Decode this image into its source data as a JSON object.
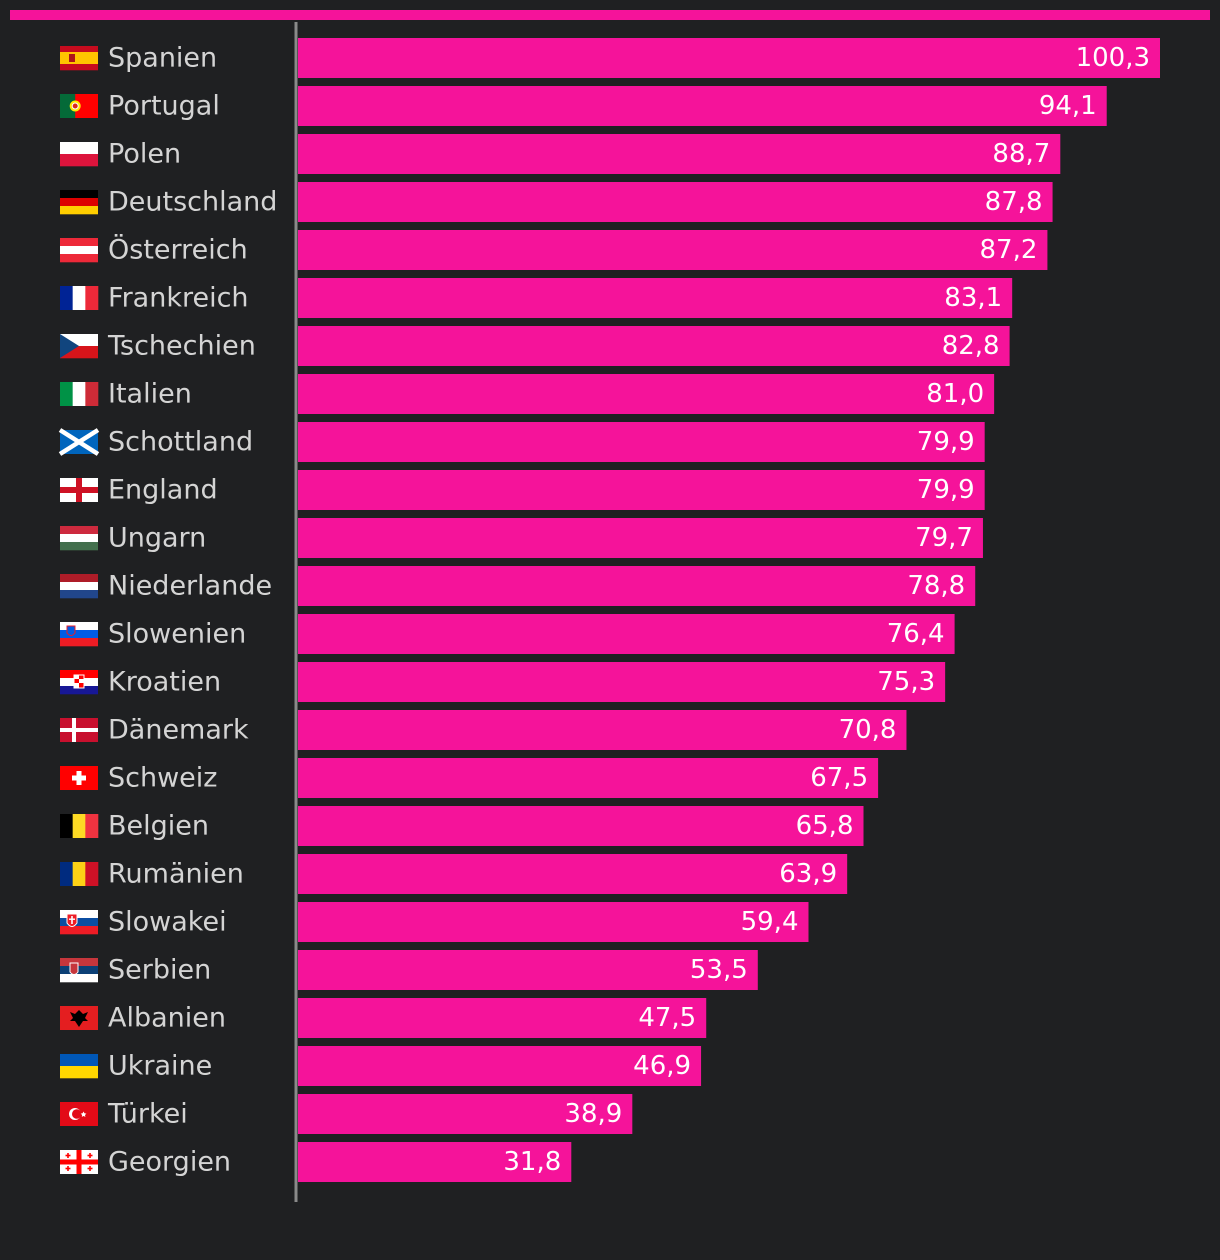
{
  "colors": {
    "background": "#1f2022",
    "bar": "#f5139a",
    "axis": "#8a8a8a",
    "label": "#d4d4d4",
    "value_text": "#ffffff"
  },
  "chart_data": {
    "type": "bar",
    "orientation": "horizontal",
    "title": "",
    "xlabel": "",
    "ylabel": "",
    "xlim": [
      0,
      100.3
    ],
    "grid": false,
    "legend": "none",
    "categories": [
      "Spanien",
      "Portugal",
      "Polen",
      "Deutschland",
      "Österreich",
      "Frankreich",
      "Tschechien",
      "Italien",
      "Schottland",
      "England",
      "Ungarn",
      "Niederlande",
      "Slowenien",
      "Kroatien",
      "Dänemark",
      "Schweiz",
      "Belgien",
      "Rumänien",
      "Slowakei",
      "Serbien",
      "Albanien",
      "Ukraine",
      "Türkei",
      "Georgien"
    ],
    "flags": [
      "spain-flag-icon",
      "portugal-flag-icon",
      "poland-flag-icon",
      "germany-flag-icon",
      "austria-flag-icon",
      "france-flag-icon",
      "czechia-flag-icon",
      "italy-flag-icon",
      "scotland-flag-icon",
      "england-flag-icon",
      "hungary-flag-icon",
      "netherlands-flag-icon",
      "slovenia-flag-icon",
      "croatia-flag-icon",
      "denmark-flag-icon",
      "switzerland-flag-icon",
      "belgium-flag-icon",
      "romania-flag-icon",
      "slovakia-flag-icon",
      "serbia-flag-icon",
      "albania-flag-icon",
      "ukraine-flag-icon",
      "turkey-flag-icon",
      "georgia-flag-icon"
    ],
    "values": [
      100.3,
      94.1,
      88.7,
      87.8,
      87.2,
      83.1,
      82.8,
      81.0,
      79.9,
      79.9,
      79.7,
      78.8,
      76.4,
      75.3,
      70.8,
      67.5,
      65.8,
      63.9,
      59.4,
      53.5,
      47.5,
      46.9,
      38.9,
      31.8
    ],
    "value_labels": [
      "100,3",
      "94,1",
      "88,7",
      "87,8",
      "87,2",
      "83,1",
      "82,8",
      "81,0",
      "79,9",
      "79,9",
      "79,7",
      "78,8",
      "76,4",
      "75,3",
      "70,8",
      "67,5",
      "65,8",
      "63,9",
      "59,4",
      "53,5",
      "47,5",
      "46,9",
      "38,9",
      "31,8"
    ]
  }
}
